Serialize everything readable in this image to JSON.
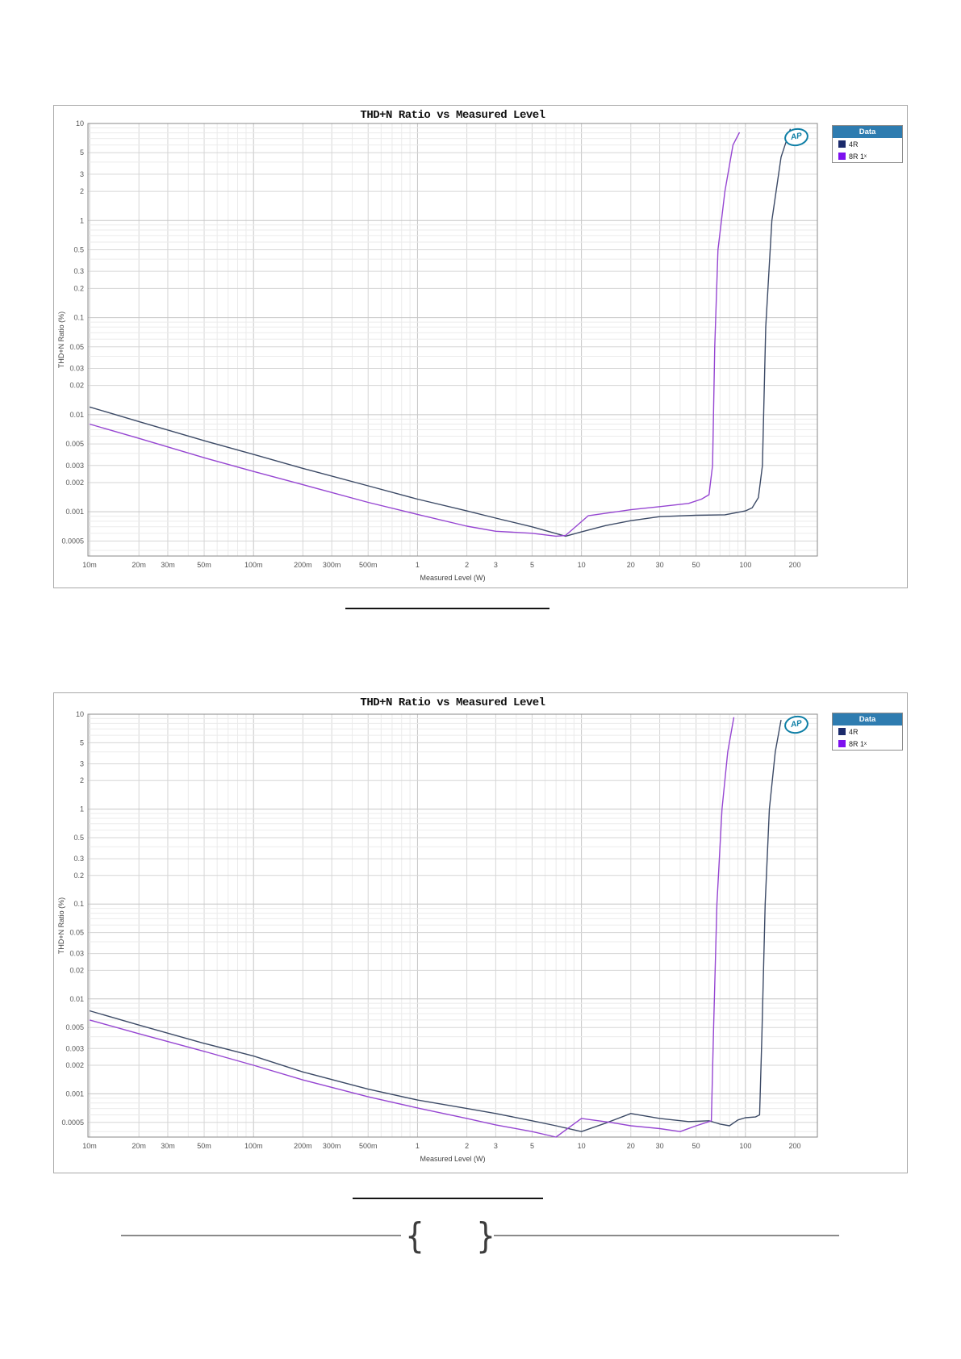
{
  "footer": {
    "brace_left": "{",
    "brace_right": "}"
  },
  "charts": [
    {
      "title": "THD+N Ratio vs Measured Level",
      "xlabel": "Measured Level (W)",
      "ylabel": "THD+N Ratio (%)",
      "logo_text": "AP",
      "legend": {
        "header": "Data"
      },
      "x_ticks": [
        {
          "label": "10m",
          "value": 0.01
        },
        {
          "label": "20m",
          "value": 0.02
        },
        {
          "label": "30m",
          "value": 0.03
        },
        {
          "label": "50m",
          "value": 0.05
        },
        {
          "label": "100m",
          "value": 0.1
        },
        {
          "label": "200m",
          "value": 0.2
        },
        {
          "label": "300m",
          "value": 0.3
        },
        {
          "label": "500m",
          "value": 0.5
        },
        {
          "label": "1",
          "value": 1
        },
        {
          "label": "2",
          "value": 2
        },
        {
          "label": "3",
          "value": 3
        },
        {
          "label": "5",
          "value": 5
        },
        {
          "label": "10",
          "value": 10
        },
        {
          "label": "20",
          "value": 20
        },
        {
          "label": "30",
          "value": 30
        },
        {
          "label": "50",
          "value": 50
        },
        {
          "label": "100",
          "value": 100
        },
        {
          "label": "200",
          "value": 200
        }
      ],
      "y_ticks": [
        {
          "label": "10",
          "value": 10
        },
        {
          "label": "5",
          "value": 5
        },
        {
          "label": "3",
          "value": 3
        },
        {
          "label": "2",
          "value": 2
        },
        {
          "label": "1",
          "value": 1
        },
        {
          "label": "0.5",
          "value": 0.5
        },
        {
          "label": "0.3",
          "value": 0.3
        },
        {
          "label": "0.2",
          "value": 0.2
        },
        {
          "label": "0.1",
          "value": 0.1
        },
        {
          "label": "0.05",
          "value": 0.05
        },
        {
          "label": "0.03",
          "value": 0.03
        },
        {
          "label": "0.02",
          "value": 0.02
        },
        {
          "label": "0.01",
          "value": 0.01
        },
        {
          "label": "0.005",
          "value": 0.005
        },
        {
          "label": "0.003",
          "value": 0.003
        },
        {
          "label": "0.002",
          "value": 0.002
        },
        {
          "label": "0.001",
          "value": 0.001
        },
        {
          "label": "0.0005",
          "value": 0.0005
        }
      ],
      "chart_data": {
        "type": "line",
        "x_axis": "Measured Level (W), log scale 0.01 to 200",
        "y_axis": "THD+N Ratio (%), log scale 0.0005 to 10",
        "legend_position": "top-right outside plot",
        "grid": true,
        "series": [
          {
            "name": "4R",
            "color": "#3c4a66",
            "swatch": "#1b2a6b",
            "points": [
              [
                0.01,
                0.012
              ],
              [
                0.02,
                0.0085
              ],
              [
                0.05,
                0.0054
              ],
              [
                0.1,
                0.0039
              ],
              [
                0.2,
                0.0028
              ],
              [
                0.5,
                0.00185
              ],
              [
                1,
                0.00135
              ],
              [
                2,
                0.00102
              ],
              [
                3,
                0.00086
              ],
              [
                5,
                0.0007
              ],
              [
                8,
                0.00056
              ],
              [
                10,
                0.00062
              ],
              [
                14,
                0.00072
              ],
              [
                20,
                0.00081
              ],
              [
                30,
                0.00089
              ],
              [
                50,
                0.00092
              ],
              [
                75,
                0.00093
              ],
              [
                100,
                0.00102
              ],
              [
                110,
                0.0011
              ],
              [
                120,
                0.0014
              ],
              [
                127,
                0.003
              ],
              [
                133,
                0.08
              ],
              [
                145,
                1.0
              ],
              [
                165,
                4.5
              ],
              [
                188,
                8.8
              ]
            ]
          },
          {
            "name": "8R 1ˣ",
            "color": "#9646d2",
            "swatch": "#7d10ef",
            "points": [
              [
                0.01,
                0.008
              ],
              [
                0.02,
                0.0057
              ],
              [
                0.05,
                0.0036
              ],
              [
                0.1,
                0.0026
              ],
              [
                0.2,
                0.0019
              ],
              [
                0.5,
                0.00125
              ],
              [
                1,
                0.00094
              ],
              [
                2,
                0.00071
              ],
              [
                3,
                0.00063
              ],
              [
                5,
                0.0006
              ],
              [
                7,
                0.00056
              ],
              [
                8,
                0.00057
              ],
              [
                11,
                0.00091
              ],
              [
                15,
                0.00098
              ],
              [
                20,
                0.00105
              ],
              [
                30,
                0.00113
              ],
              [
                45,
                0.00122
              ],
              [
                54,
                0.00135
              ],
              [
                60,
                0.0015
              ],
              [
                63,
                0.003
              ],
              [
                65,
                0.05
              ],
              [
                68,
                0.5
              ],
              [
                75,
                2.0
              ],
              [
                84,
                6.0
              ],
              [
                92,
                8.1
              ]
            ]
          }
        ]
      }
    },
    {
      "title": "THD+N Ratio vs Measured Level",
      "xlabel": "Measured Level (W)",
      "ylabel": "THD+N Ratio (%)",
      "logo_text": "AP",
      "legend": {
        "header": "Data"
      },
      "x_ticks": [
        {
          "label": "10m",
          "value": 0.01
        },
        {
          "label": "20m",
          "value": 0.02
        },
        {
          "label": "30m",
          "value": 0.03
        },
        {
          "label": "50m",
          "value": 0.05
        },
        {
          "label": "100m",
          "value": 0.1
        },
        {
          "label": "200m",
          "value": 0.2
        },
        {
          "label": "300m",
          "value": 0.3
        },
        {
          "label": "500m",
          "value": 0.5
        },
        {
          "label": "1",
          "value": 1
        },
        {
          "label": "2",
          "value": 2
        },
        {
          "label": "3",
          "value": 3
        },
        {
          "label": "5",
          "value": 5
        },
        {
          "label": "10",
          "value": 10
        },
        {
          "label": "20",
          "value": 20
        },
        {
          "label": "30",
          "value": 30
        },
        {
          "label": "50",
          "value": 50
        },
        {
          "label": "100",
          "value": 100
        },
        {
          "label": "200",
          "value": 200
        }
      ],
      "y_ticks": [
        {
          "label": "10",
          "value": 10
        },
        {
          "label": "5",
          "value": 5
        },
        {
          "label": "3",
          "value": 3
        },
        {
          "label": "2",
          "value": 2
        },
        {
          "label": "1",
          "value": 1
        },
        {
          "label": "0.5",
          "value": 0.5
        },
        {
          "label": "0.3",
          "value": 0.3
        },
        {
          "label": "0.2",
          "value": 0.2
        },
        {
          "label": "0.1",
          "value": 0.1
        },
        {
          "label": "0.05",
          "value": 0.05
        },
        {
          "label": "0.03",
          "value": 0.03
        },
        {
          "label": "0.02",
          "value": 0.02
        },
        {
          "label": "0.01",
          "value": 0.01
        },
        {
          "label": "0.005",
          "value": 0.005
        },
        {
          "label": "0.003",
          "value": 0.003
        },
        {
          "label": "0.002",
          "value": 0.002
        },
        {
          "label": "0.001",
          "value": 0.001
        },
        {
          "label": "0.0005",
          "value": 0.0005
        }
      ],
      "chart_data": {
        "type": "line",
        "x_axis": "Measured Level (W), log scale 0.01 to 200",
        "y_axis": "THD+N Ratio (%), log scale 0.0005 to 10",
        "legend_position": "top-right outside plot",
        "grid": true,
        "series": [
          {
            "name": "4R",
            "color": "#3c4a66",
            "swatch": "#1b2a6b",
            "points": [
              [
                0.01,
                0.0075
              ],
              [
                0.02,
                0.0053
              ],
              [
                0.05,
                0.0034
              ],
              [
                0.1,
                0.0025
              ],
              [
                0.2,
                0.0017
              ],
              [
                0.5,
                0.00112
              ],
              [
                1,
                0.00086
              ],
              [
                2,
                0.0007
              ],
              [
                3,
                0.00062
              ],
              [
                5,
                0.00052
              ],
              [
                7,
                0.00046
              ],
              [
                10,
                0.0004
              ],
              [
                14,
                0.00049
              ],
              [
                20,
                0.00062
              ],
              [
                30,
                0.00055
              ],
              [
                45,
                0.00051
              ],
              [
                60,
                0.00052
              ],
              [
                70,
                0.00048
              ],
              [
                80,
                0.00046
              ],
              [
                90,
                0.00053
              ],
              [
                100,
                0.00056
              ],
              [
                115,
                0.00057
              ],
              [
                122,
                0.0006
              ],
              [
                126,
                0.004
              ],
              [
                132,
                0.1
              ],
              [
                140,
                1.0
              ],
              [
                152,
                4.0
              ],
              [
                165,
                8.7
              ]
            ]
          },
          {
            "name": "8R 1ˣ",
            "color": "#9646d2",
            "swatch": "#7d10ef",
            "points": [
              [
                0.01,
                0.006
              ],
              [
                0.02,
                0.0043
              ],
              [
                0.05,
                0.0028
              ],
              [
                0.1,
                0.002
              ],
              [
                0.2,
                0.0014
              ],
              [
                0.5,
                0.00093
              ],
              [
                1,
                0.00071
              ],
              [
                2,
                0.00055
              ],
              [
                3,
                0.00047
              ],
              [
                5,
                0.0004
              ],
              [
                7,
                0.00035
              ],
              [
                10,
                0.00055
              ],
              [
                15,
                0.0005
              ],
              [
                20,
                0.00046
              ],
              [
                30,
                0.00043
              ],
              [
                40,
                0.0004
              ],
              [
                50,
                0.00046
              ],
              [
                58,
                0.0005
              ],
              [
                62,
                0.00052
              ],
              [
                64,
                0.005
              ],
              [
                67,
                0.1
              ],
              [
                72,
                1.0
              ],
              [
                78,
                4.0
              ],
              [
                85,
                9.3
              ]
            ]
          }
        ]
      }
    }
  ]
}
